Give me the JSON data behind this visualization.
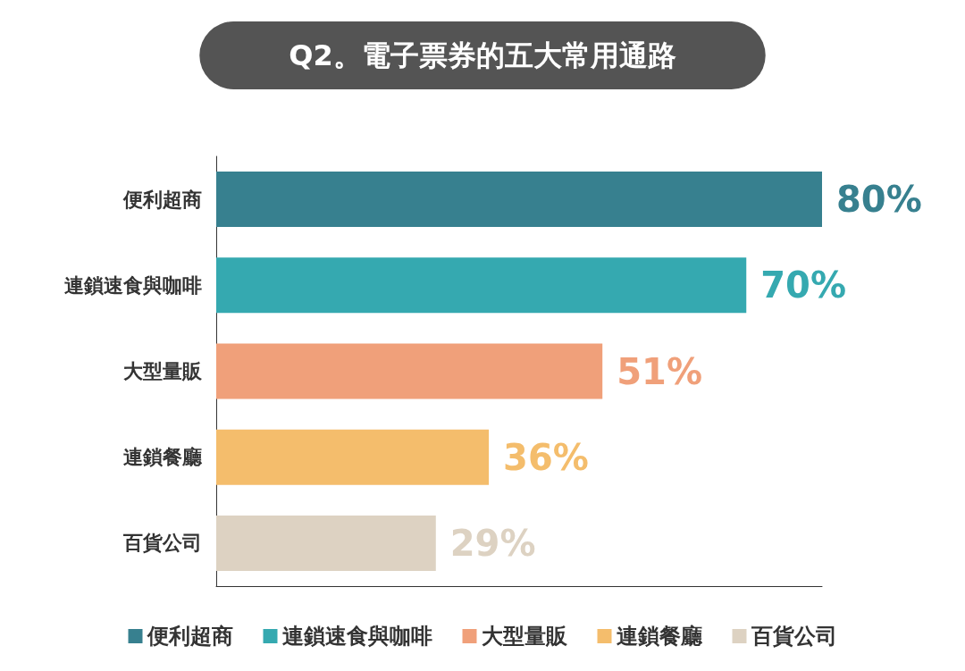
{
  "chart_data": {
    "type": "bar",
    "orientation": "horizontal",
    "title": "Q2。電子票券的五大常用通路",
    "categories": [
      "便利超商",
      "連鎖速食與咖啡",
      "大型量販",
      "連鎖餐廳",
      "百貨公司"
    ],
    "series": [
      {
        "name": "便利超商",
        "color": "#37808f",
        "values": [
          80,
          null,
          null,
          null,
          null
        ],
        "value_labels": [
          "80%",
          null,
          null,
          null,
          null
        ]
      },
      {
        "name": "連鎖速食與咖啡",
        "color": "#35a9b0",
        "values": [
          null,
          70,
          null,
          null,
          null
        ],
        "value_labels": [
          null,
          "70%",
          null,
          null,
          null
        ]
      },
      {
        "name": "大型量販",
        "color": "#f0a07a",
        "values": [
          null,
          null,
          51,
          null,
          null
        ],
        "value_labels": [
          null,
          null,
          "51%",
          null,
          null
        ]
      },
      {
        "name": "連鎖餐廳",
        "color": "#f4bd6c",
        "values": [
          null,
          null,
          null,
          36,
          null
        ],
        "value_labels": [
          null,
          null,
          null,
          "36%",
          null
        ]
      },
      {
        "name": "百貨公司",
        "color": "#ddd2c2",
        "values": [
          null,
          null,
          null,
          null,
          29
        ],
        "value_labels": [
          null,
          null,
          null,
          null,
          "29%"
        ]
      }
    ],
    "tick_labels": "y",
    "grid": false,
    "legend": "bottom"
  }
}
